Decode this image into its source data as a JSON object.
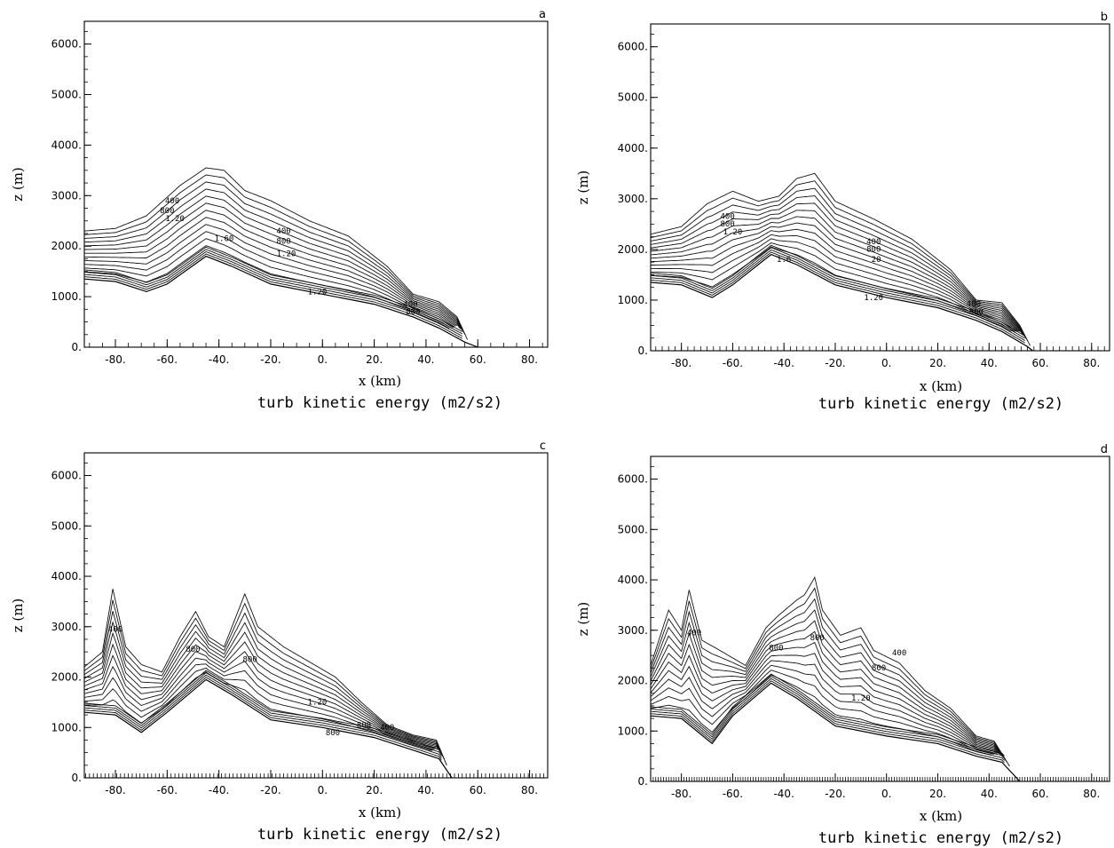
{
  "figure": {
    "colors": {
      "ink": "#000000",
      "background": "#ffffff"
    }
  },
  "chart_data": [
    {
      "type": "contour",
      "panel_label": "a",
      "xlabel": "x (km)",
      "ylabel": "z (m)",
      "caption": "turb kinetic energy (m2/s2)",
      "xlim": [
        -92,
        87
      ],
      "ylim": [
        0,
        6450
      ],
      "x_ticks": [
        -80,
        -60,
        -40,
        -20,
        0,
        20,
        40,
        60,
        80
      ],
      "x_tick_labels": [
        "-80.",
        "-60.",
        "-40.",
        "-20.",
        "0.",
        "20.",
        "40.",
        "60.",
        "80."
      ],
      "y_ticks": [
        0,
        1000,
        2000,
        3000,
        4000,
        5000,
        6000
      ],
      "y_tick_labels": [
        "0.",
        "1000.",
        "2000.",
        "3000.",
        "4000.",
        "5000.",
        "6000."
      ],
      "minor_tick_spacing_km": 5,
      "terrain": {
        "x": [
          -92,
          -80,
          -68,
          -60,
          -45,
          -35,
          -20,
          0,
          20,
          35,
          45,
          55,
          60
        ],
        "z": [
          1350,
          1300,
          1100,
          1250,
          1800,
          1600,
          1250,
          1050,
          850,
          600,
          380,
          100,
          0
        ]
      },
      "outer_boundary": {
        "x": [
          -92,
          -80,
          -68,
          -55,
          -45,
          -38,
          -30,
          -20,
          -5,
          10,
          25,
          35,
          45,
          52,
          56
        ],
        "z": [
          2300,
          2350,
          2600,
          3200,
          3550,
          3500,
          3100,
          2900,
          2500,
          2200,
          1600,
          1050,
          900,
          600,
          150
        ]
      },
      "contour_levels": 12,
      "contour_labels": [
        {
          "text": "400",
          "x": -58,
          "z": 2850
        },
        {
          "text": "800",
          "x": -60,
          "z": 2650
        },
        {
          "text": "1.20",
          "x": -57,
          "z": 2500
        },
        {
          "text": "1.60",
          "x": -38,
          "z": 2100
        },
        {
          "text": "400",
          "x": -15,
          "z": 2250
        },
        {
          "text": "800",
          "x": -15,
          "z": 2050
        },
        {
          "text": "1.20",
          "x": -14,
          "z": 1800
        },
        {
          "text": "1.20",
          "x": -2,
          "z": 1050
        },
        {
          "text": "400",
          "x": 34,
          "z": 800
        },
        {
          "text": "800",
          "x": 35,
          "z": 650
        }
      ]
    },
    {
      "type": "contour",
      "panel_label": "b",
      "xlabel": "x (km)",
      "ylabel": "z (m)",
      "caption": "turb kinetic energy (m2/s2)",
      "xlim": [
        -92,
        87
      ],
      "ylim": [
        0,
        6450
      ],
      "x_ticks": [
        -80,
        -60,
        -40,
        -20,
        0,
        20,
        40,
        60,
        80
      ],
      "x_tick_labels": [
        "-80.",
        "-60.",
        "-40.",
        "-20.",
        "0.",
        "20.",
        "40.",
        "60.",
        "80."
      ],
      "y_ticks": [
        0,
        1000,
        2000,
        3000,
        4000,
        5000,
        6000
      ],
      "y_tick_labels": [
        "0.",
        "1000.",
        "2000.",
        "3000.",
        "4000.",
        "5000.",
        "6000."
      ],
      "minor_tick_spacing_km": 2.5,
      "terrain": {
        "x": [
          -92,
          -80,
          -68,
          -60,
          -45,
          -35,
          -20,
          0,
          20,
          35,
          45,
          55,
          57
        ],
        "z": [
          1350,
          1300,
          1050,
          1300,
          1900,
          1700,
          1300,
          1050,
          850,
          600,
          380,
          80,
          0
        ]
      },
      "outer_boundary": {
        "x": [
          -92,
          -80,
          -70,
          -60,
          -50,
          -42,
          -35,
          -28,
          -20,
          -5,
          10,
          25,
          35,
          45,
          52,
          56
        ],
        "z": [
          2300,
          2450,
          2900,
          3150,
          2950,
          3050,
          3400,
          3500,
          2950,
          2600,
          2200,
          1600,
          1000,
          950,
          500,
          100
        ]
      },
      "contour_levels": 13,
      "contour_labels": [
        {
          "text": "400",
          "x": -62,
          "z": 2600
        },
        {
          "text": "800",
          "x": -62,
          "z": 2450
        },
        {
          "text": "1.20",
          "x": -60,
          "z": 2300
        },
        {
          "text": "1.6",
          "x": -40,
          "z": 1750
        },
        {
          "text": "400",
          "x": -5,
          "z": 2100
        },
        {
          "text": "800",
          "x": -5,
          "z": 1950
        },
        {
          "text": "20",
          "x": -4,
          "z": 1750
        },
        {
          "text": "1.20",
          "x": -5,
          "z": 1000
        },
        {
          "text": "400",
          "x": 34,
          "z": 880
        },
        {
          "text": "800",
          "x": 35,
          "z": 720
        }
      ]
    },
    {
      "type": "contour",
      "panel_label": "c",
      "xlabel": "x (km)",
      "ylabel": "z (m)",
      "caption": "turb kinetic energy (m2/s2)",
      "xlim": [
        -92,
        87
      ],
      "ylim": [
        0,
        6450
      ],
      "x_ticks": [
        -80,
        -60,
        -40,
        -20,
        0,
        20,
        40,
        60,
        80
      ],
      "x_tick_labels": [
        "-80.",
        "-60.",
        "-40.",
        "-20.",
        "0.",
        "20.",
        "40.",
        "60.",
        "80."
      ],
      "y_ticks": [
        0,
        1000,
        2000,
        3000,
        4000,
        5000,
        6000
      ],
      "y_tick_labels": [
        "0.",
        "1000.",
        "2000.",
        "3000.",
        "4000.",
        "5000.",
        "6000."
      ],
      "minor_tick_spacing_km": 1.5,
      "terrain": {
        "x": [
          -92,
          -80,
          -70,
          -60,
          -45,
          -35,
          -20,
          0,
          20,
          35,
          45,
          50
        ],
        "z": [
          1300,
          1250,
          900,
          1300,
          1950,
          1650,
          1150,
          1000,
          800,
          550,
          380,
          0
        ]
      },
      "outer_boundary": {
        "x": [
          -92,
          -85,
          -81,
          -76,
          -70,
          -62,
          -55,
          -49,
          -44,
          -38,
          -30,
          -25,
          -15,
          -5,
          5,
          15,
          25,
          35,
          44,
          48
        ],
        "z": [
          2200,
          2500,
          3750,
          2600,
          2250,
          2100,
          2800,
          3300,
          2800,
          2600,
          3650,
          3000,
          2600,
          2300,
          2000,
          1500,
          1050,
          850,
          750,
          250
        ]
      },
      "contour_levels": 11,
      "contour_labels": [
        {
          "text": "400",
          "x": -80,
          "z": 2900
        },
        {
          "text": "800",
          "x": -50,
          "z": 2500
        },
        {
          "text": "800",
          "x": -28,
          "z": 2300
        },
        {
          "text": "1.20",
          "x": -2,
          "z": 1450
        },
        {
          "text": "800",
          "x": 4,
          "z": 850
        },
        {
          "text": "800",
          "x": 16,
          "z": 1000
        },
        {
          "text": "400",
          "x": 25,
          "z": 950
        }
      ]
    },
    {
      "type": "contour",
      "panel_label": "d",
      "xlabel": "x (km)",
      "ylabel": "z (m)",
      "caption": "turb kinetic energy (m2/s2)",
      "xlim": [
        -92,
        87
      ],
      "ylim": [
        0,
        6450
      ],
      "x_ticks": [
        -80,
        -60,
        -40,
        -20,
        0,
        20,
        40,
        60,
        80
      ],
      "x_tick_labels": [
        "-80.",
        "-60.",
        "-40.",
        "-20.",
        "0.",
        "20.",
        "40.",
        "60.",
        "80."
      ],
      "y_ticks": [
        0,
        1000,
        2000,
        3000,
        4000,
        5000,
        6000
      ],
      "y_tick_labels": [
        "0.",
        "1000.",
        "2000.",
        "3000.",
        "4000.",
        "5000.",
        "6000."
      ],
      "minor_tick_spacing_km": 1,
      "terrain": {
        "x": [
          -92,
          -80,
          -68,
          -60,
          -45,
          -35,
          -20,
          0,
          20,
          35,
          45,
          52
        ],
        "z": [
          1300,
          1250,
          750,
          1300,
          1950,
          1650,
          1100,
          900,
          750,
          500,
          380,
          0
        ]
      },
      "outer_boundary": {
        "x": [
          -92,
          -85,
          -80,
          -77,
          -72,
          -65,
          -55,
          -47,
          -42,
          -35,
          -32,
          -28,
          -25,
          -18,
          -10,
          -5,
          5,
          15,
          25,
          35,
          42,
          48
        ],
        "z": [
          2300,
          3400,
          3000,
          3800,
          2800,
          2600,
          2300,
          3050,
          3300,
          3600,
          3700,
          4050,
          3400,
          2900,
          3050,
          2600,
          2350,
          1800,
          1450,
          900,
          800,
          300
        ]
      },
      "contour_levels": 12,
      "contour_labels": [
        {
          "text": "400",
          "x": -75,
          "z": 2900
        },
        {
          "text": "800",
          "x": -43,
          "z": 2600
        },
        {
          "text": "800",
          "x": -27,
          "z": 2800
        },
        {
          "text": "1.20",
          "x": -10,
          "z": 1600
        },
        {
          "text": "800",
          "x": -3,
          "z": 2200
        },
        {
          "text": "400",
          "x": 5,
          "z": 2500
        }
      ]
    }
  ]
}
